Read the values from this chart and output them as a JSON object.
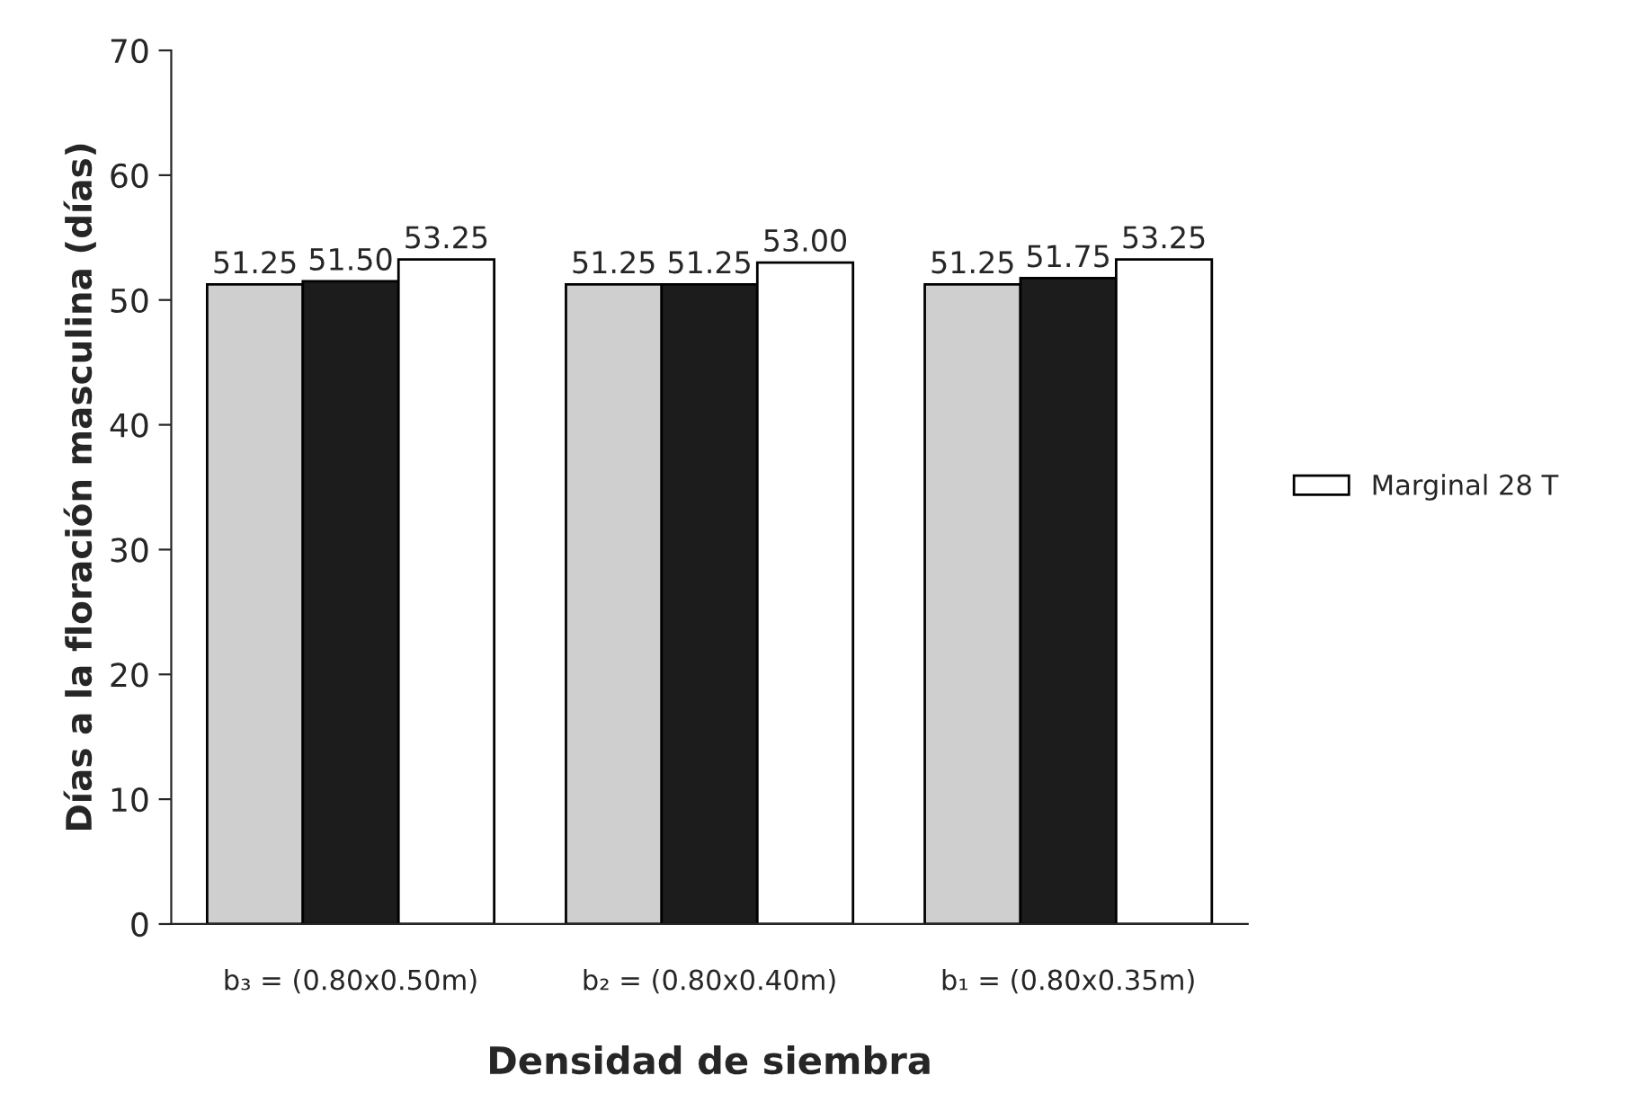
{
  "chart_data": {
    "type": "bar",
    "xlabel": "Densidad de siembra",
    "ylabel": "Días a la floración masculina (días)",
    "categories": [
      "b₃ = (0.80x0.50m)",
      "b₂ = (0.80x0.40m)",
      "b₁ = (0.80x0.35m)"
    ],
    "series": [
      {
        "color": "#cfcfcf",
        "values": [
          51.25,
          51.25,
          51.25
        ]
      },
      {
        "color": "#1c1c1c",
        "values": [
          51.5,
          51.25,
          51.75
        ]
      },
      {
        "name": "Marginal 28 T",
        "color": "#ffffff",
        "values": [
          53.25,
          53.0,
          53.25
        ]
      }
    ],
    "value_labels": [
      [
        "51.25",
        "51.25",
        "51.25"
      ],
      [
        "51.50",
        "51.25",
        "51.75"
      ],
      [
        "53.25",
        "53.00",
        "53.25"
      ]
    ],
    "ylim": [
      0,
      70
    ],
    "yticks": [
      0,
      10,
      20,
      30,
      40,
      50,
      60,
      70
    ],
    "grid": false,
    "legend": "right"
  }
}
